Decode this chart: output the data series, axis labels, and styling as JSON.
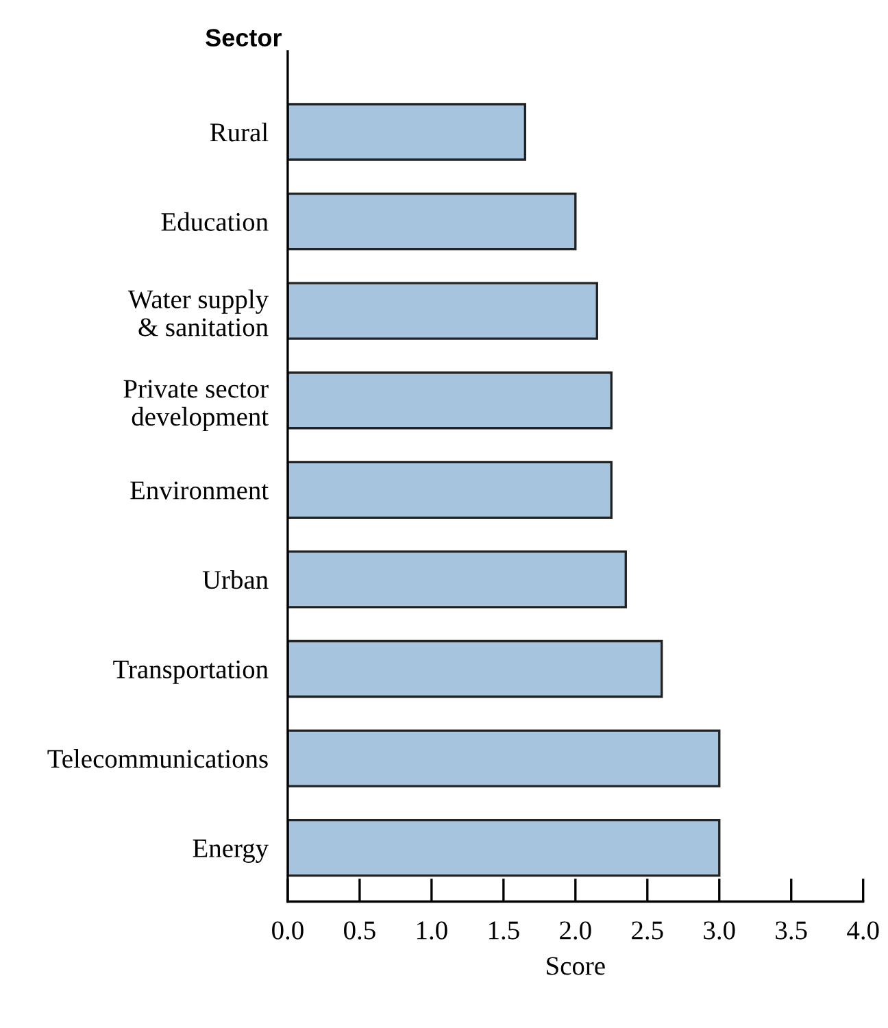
{
  "chart_data": {
    "type": "bar",
    "orientation": "horizontal",
    "ylabel": "Sector",
    "xlabel": "Score",
    "categories": [
      "Rural",
      "Education",
      "Water supply\n& sanitation",
      "Private sector\ndevelopment",
      "Environment",
      "Urban",
      "Transportation",
      "Telecommunications",
      "Energy"
    ],
    "values": [
      1.65,
      2.0,
      2.15,
      2.25,
      2.25,
      2.35,
      2.6,
      3.0,
      3.0
    ],
    "color": "#a7c4de",
    "xlim": [
      0,
      4
    ],
    "xticks": [
      {
        "value": 0,
        "label": "0.0"
      },
      {
        "value": 0.5,
        "label": "0.5"
      },
      {
        "value": 1,
        "label": "1.0"
      },
      {
        "value": 1.5,
        "label": "1.5"
      },
      {
        "value": 2,
        "label": "2.0"
      },
      {
        "value": 2.5,
        "label": "2.5"
      },
      {
        "value": 3,
        "label": "3.0"
      },
      {
        "value": 3.5,
        "label": "3.5"
      },
      {
        "value": 4,
        "label": "4.0"
      }
    ],
    "grid": false,
    "legend": false
  }
}
